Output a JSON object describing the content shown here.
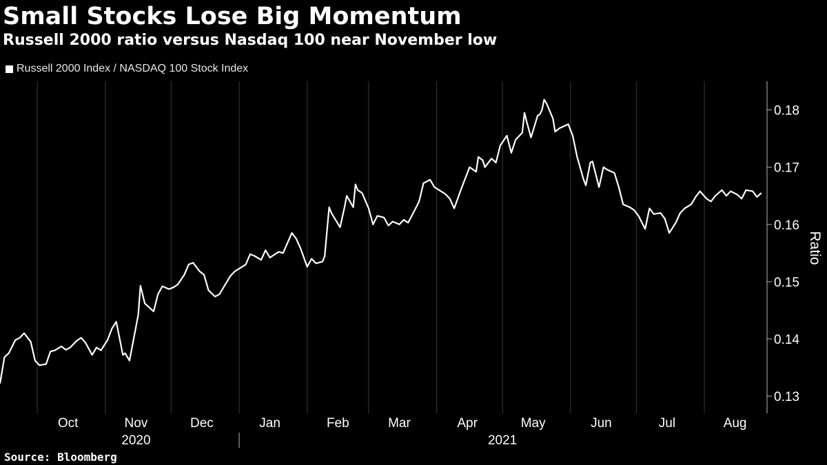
{
  "title": "Small Stocks Lose Big Momentum",
  "subtitle": "Russell 2000 ratio versus Nasdaq 100 near November low",
  "source": "Source: Bloomberg",
  "colors": {
    "background": "#000000",
    "line": "#ffffff",
    "grid": "#3a3a3a"
  },
  "chart_data": {
    "type": "line",
    "title": "Small Stocks Lose Big Momentum",
    "subtitle": "Russell 2000 ratio versus Nasdaq 100 near November low",
    "ylabel": "Ratio",
    "y_axis_side": "right",
    "ylim": [
      0.127,
      0.185
    ],
    "yticks": [
      0.13,
      0.14,
      0.15,
      0.16,
      0.17,
      0.18
    ],
    "ytick_labels": [
      "0.13",
      "0.14",
      "0.15",
      "0.16",
      "0.17",
      "0.18"
    ],
    "xlim": [
      "2020-09-14",
      "2021-08-28"
    ],
    "x_month_boundaries": [
      "2020-10-01",
      "2020-11-01",
      "2020-12-01",
      "2021-01-01",
      "2021-02-01",
      "2021-03-01",
      "2021-04-01",
      "2021-05-01",
      "2021-06-01",
      "2021-07-01",
      "2021-08-01"
    ],
    "x_month_labels": [
      {
        "date": "2020-10-15",
        "label": "Oct"
      },
      {
        "date": "2020-11-15",
        "label": "Nov"
      },
      {
        "date": "2020-12-15",
        "label": "Dec"
      },
      {
        "date": "2021-01-15",
        "label": "Jan"
      },
      {
        "date": "2021-02-15",
        "label": "Feb"
      },
      {
        "date": "2021-03-15",
        "label": "Mar"
      },
      {
        "date": "2021-04-15",
        "label": "Apr"
      },
      {
        "date": "2021-05-15",
        "label": "May"
      },
      {
        "date": "2021-06-15",
        "label": "Jun"
      },
      {
        "date": "2021-07-15",
        "label": "Jul"
      },
      {
        "date": "2021-08-15",
        "label": "Aug"
      }
    ],
    "x_year_labels": [
      {
        "date": "2020-11-15",
        "label": "2020"
      },
      {
        "date": "2021-05-01",
        "label": "2021"
      }
    ],
    "year_separator": "2021-01-01",
    "grid": "vertical at month boundaries",
    "legend_position": "top-left",
    "series": [
      {
        "name": "Russell 2000 Index / NASDAQ 100 Stock Index",
        "points": [
          [
            "2020-09-14",
            0.1322
          ],
          [
            "2020-09-16",
            0.1368
          ],
          [
            "2020-09-18",
            0.1375
          ],
          [
            "2020-09-21",
            0.1398
          ],
          [
            "2020-09-23",
            0.1402
          ],
          [
            "2020-09-25",
            0.141
          ],
          [
            "2020-09-28",
            0.1395
          ],
          [
            "2020-09-30",
            0.1362
          ],
          [
            "2020-10-02",
            0.1354
          ],
          [
            "2020-10-05",
            0.1356
          ],
          [
            "2020-10-07",
            0.1378
          ],
          [
            "2020-10-09",
            0.138
          ],
          [
            "2020-10-12",
            0.1387
          ],
          [
            "2020-10-14",
            0.1381
          ],
          [
            "2020-10-16",
            0.1385
          ],
          [
            "2020-10-19",
            0.1397
          ],
          [
            "2020-10-21",
            0.1402
          ],
          [
            "2020-10-23",
            0.1393
          ],
          [
            "2020-10-26",
            0.1372
          ],
          [
            "2020-10-28",
            0.1385
          ],
          [
            "2020-10-30",
            0.138
          ],
          [
            "2020-11-02",
            0.1398
          ],
          [
            "2020-11-04",
            0.1418
          ],
          [
            "2020-11-06",
            0.143
          ],
          [
            "2020-11-09",
            0.1372
          ],
          [
            "2020-11-10",
            0.1375
          ],
          [
            "2020-11-12",
            0.1362
          ],
          [
            "2020-11-16",
            0.1442
          ],
          [
            "2020-11-17",
            0.1493
          ],
          [
            "2020-11-19",
            0.1462
          ],
          [
            "2020-11-23",
            0.1448
          ],
          [
            "2020-11-25",
            0.1478
          ],
          [
            "2020-11-27",
            0.1492
          ],
          [
            "2020-11-30",
            0.1487
          ],
          [
            "2020-12-02",
            0.149
          ],
          [
            "2020-12-04",
            0.1495
          ],
          [
            "2020-12-07",
            0.1512
          ],
          [
            "2020-12-09",
            0.153
          ],
          [
            "2020-12-11",
            0.1533
          ],
          [
            "2020-12-14",
            0.1518
          ],
          [
            "2020-12-16",
            0.1512
          ],
          [
            "2020-12-18",
            0.1485
          ],
          [
            "2020-12-21",
            0.1474
          ],
          [
            "2020-12-23",
            0.1478
          ],
          [
            "2020-12-28",
            0.151
          ],
          [
            "2020-12-30",
            0.1518
          ],
          [
            "2021-01-04",
            0.153
          ],
          [
            "2021-01-06",
            0.1548
          ],
          [
            "2021-01-08",
            0.1545
          ],
          [
            "2021-01-11",
            0.1538
          ],
          [
            "2021-01-13",
            0.1555
          ],
          [
            "2021-01-15",
            0.1542
          ],
          [
            "2021-01-19",
            0.1552
          ],
          [
            "2021-01-21",
            0.155
          ],
          [
            "2021-01-25",
            0.1585
          ],
          [
            "2021-01-27",
            0.1575
          ],
          [
            "2021-01-29",
            0.1558
          ],
          [
            "2021-02-01",
            0.1526
          ],
          [
            "2021-02-03",
            0.154
          ],
          [
            "2021-02-05",
            0.1532
          ],
          [
            "2021-02-08",
            0.1535
          ],
          [
            "2021-02-09",
            0.1545
          ],
          [
            "2021-02-11",
            0.163
          ],
          [
            "2021-02-12",
            0.162
          ],
          [
            "2021-02-16",
            0.1595
          ],
          [
            "2021-02-18",
            0.163
          ],
          [
            "2021-02-19",
            0.165
          ],
          [
            "2021-02-22",
            0.163
          ],
          [
            "2021-02-23",
            0.167
          ],
          [
            "2021-02-24",
            0.166
          ],
          [
            "2021-02-26",
            0.1655
          ],
          [
            "2021-03-01",
            0.1628
          ],
          [
            "2021-03-03",
            0.16
          ],
          [
            "2021-03-05",
            0.1615
          ],
          [
            "2021-03-08",
            0.1612
          ],
          [
            "2021-03-10",
            0.1598
          ],
          [
            "2021-03-12",
            0.1605
          ],
          [
            "2021-03-15",
            0.16
          ],
          [
            "2021-03-17",
            0.1608
          ],
          [
            "2021-03-19",
            0.1603
          ],
          [
            "2021-03-22",
            0.1625
          ],
          [
            "2021-03-24",
            0.164
          ],
          [
            "2021-03-26",
            0.1672
          ],
          [
            "2021-03-29",
            0.1678
          ],
          [
            "2021-03-31",
            0.1665
          ],
          [
            "2021-04-05",
            0.1653
          ],
          [
            "2021-04-07",
            0.1645
          ],
          [
            "2021-04-09",
            0.1628
          ],
          [
            "2021-04-12",
            0.166
          ],
          [
            "2021-04-14",
            0.168
          ],
          [
            "2021-04-16",
            0.17
          ],
          [
            "2021-04-19",
            0.1692
          ],
          [
            "2021-04-20",
            0.1718
          ],
          [
            "2021-04-22",
            0.1712
          ],
          [
            "2021-04-23",
            0.17
          ],
          [
            "2021-04-26",
            0.1715
          ],
          [
            "2021-04-28",
            0.1708
          ],
          [
            "2021-04-30",
            0.1738
          ],
          [
            "2021-05-03",
            0.1755
          ],
          [
            "2021-05-05",
            0.1725
          ],
          [
            "2021-05-07",
            0.1748
          ],
          [
            "2021-05-10",
            0.176
          ],
          [
            "2021-05-11",
            0.1795
          ],
          [
            "2021-05-12",
            0.178
          ],
          [
            "2021-05-14",
            0.1752
          ],
          [
            "2021-05-17",
            0.179
          ],
          [
            "2021-05-18",
            0.1792
          ],
          [
            "2021-05-19",
            0.18
          ],
          [
            "2021-05-20",
            0.1818
          ],
          [
            "2021-05-21",
            0.1812
          ],
          [
            "2021-05-24",
            0.1785
          ],
          [
            "2021-05-25",
            0.1762
          ],
          [
            "2021-05-27",
            0.1768
          ],
          [
            "2021-05-31",
            0.1775
          ],
          [
            "2021-06-02",
            0.1755
          ],
          [
            "2021-06-04",
            0.1718
          ],
          [
            "2021-06-07",
            0.1678
          ],
          [
            "2021-06-08",
            0.1668
          ],
          [
            "2021-06-10",
            0.1708
          ],
          [
            "2021-06-11",
            0.171
          ],
          [
            "2021-06-14",
            0.1665
          ],
          [
            "2021-06-16",
            0.17
          ],
          [
            "2021-06-18",
            0.1695
          ],
          [
            "2021-06-21",
            0.169
          ],
          [
            "2021-06-23",
            0.1665
          ],
          [
            "2021-06-25",
            0.1635
          ],
          [
            "2021-06-28",
            0.163
          ],
          [
            "2021-06-30",
            0.1625
          ],
          [
            "2021-07-02",
            0.1615
          ],
          [
            "2021-07-05",
            0.1592
          ],
          [
            "2021-07-07",
            0.1628
          ],
          [
            "2021-07-09",
            0.1618
          ],
          [
            "2021-07-12",
            0.162
          ],
          [
            "2021-07-14",
            0.161
          ],
          [
            "2021-07-16",
            0.1585
          ],
          [
            "2021-07-19",
            0.1603
          ],
          [
            "2021-07-21",
            0.162
          ],
          [
            "2021-07-23",
            0.1628
          ],
          [
            "2021-07-26",
            0.1635
          ],
          [
            "2021-07-28",
            0.1648
          ],
          [
            "2021-07-30",
            0.1658
          ],
          [
            "2021-08-02",
            0.1645
          ],
          [
            "2021-08-04",
            0.164
          ],
          [
            "2021-08-06",
            0.165
          ],
          [
            "2021-08-09",
            0.166
          ],
          [
            "2021-08-11",
            0.165
          ],
          [
            "2021-08-13",
            0.1658
          ],
          [
            "2021-08-16",
            0.1652
          ],
          [
            "2021-08-18",
            0.1645
          ],
          [
            "2021-08-20",
            0.166
          ],
          [
            "2021-08-23",
            0.1658
          ],
          [
            "2021-08-25",
            0.1648
          ],
          [
            "2021-08-27",
            0.1655
          ]
        ]
      }
    ]
  }
}
